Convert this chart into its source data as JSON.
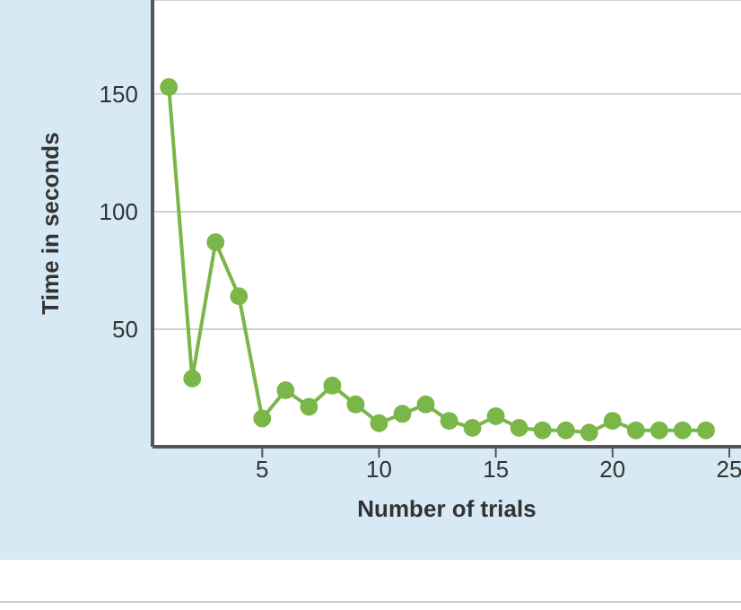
{
  "chart_data": {
    "type": "line",
    "xlabel": "Number of trials",
    "ylabel": "Time in seconds",
    "x": [
      1,
      2,
      3,
      4,
      5,
      6,
      7,
      8,
      9,
      10,
      11,
      12,
      13,
      14,
      15,
      16,
      17,
      18,
      19,
      20,
      21,
      22,
      23,
      24
    ],
    "series": [
      {
        "color": "#7ab648",
        "values": [
          153,
          29,
          87,
          64,
          12,
          24,
          17,
          26,
          18,
          10,
          14,
          18,
          11,
          8,
          13,
          8,
          7,
          7,
          6,
          11,
          7,
          7,
          7,
          7
        ]
      }
    ],
    "xlim": [
      0.3,
      25.5
    ],
    "xticks": [
      5,
      10,
      15,
      20,
      25
    ],
    "ylim": [
      0,
      190
    ],
    "yticks": [
      50,
      100,
      150
    ],
    "grid": "y",
    "marker": "circle",
    "line_style": "solid",
    "legend": false
  }
}
